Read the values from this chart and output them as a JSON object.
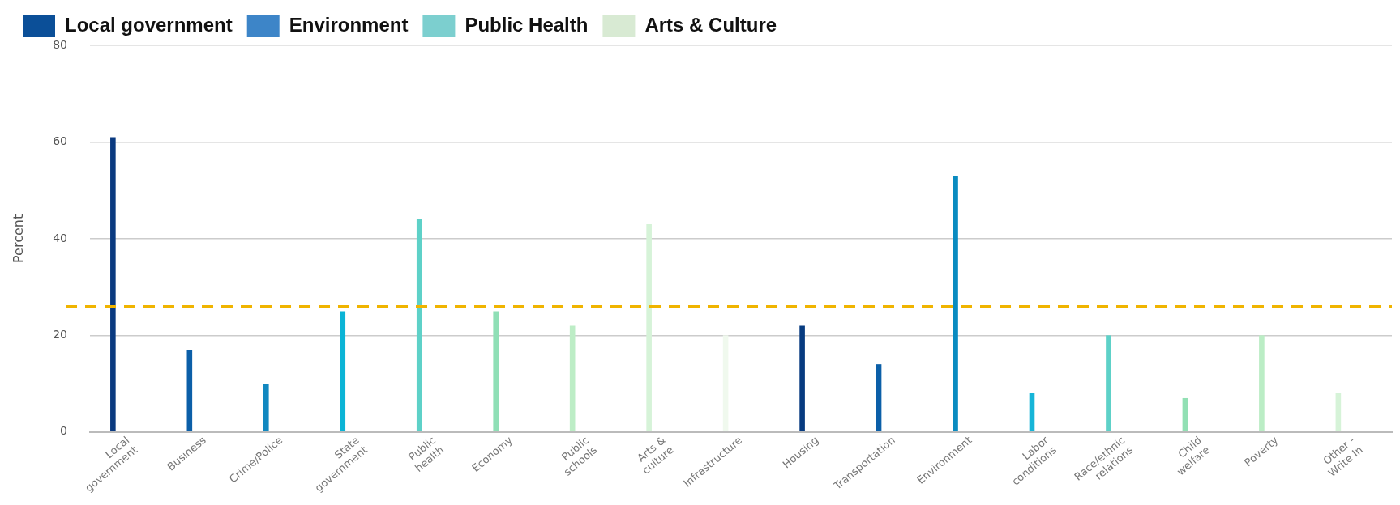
{
  "chart_data": {
    "type": "bar",
    "ylabel": "Percent",
    "categories": [
      "Local government",
      "Business",
      "Crime/Police",
      "State government",
      "Public health",
      "Economy",
      "Public schools",
      "Arts & culture",
      "Infrastructure",
      "Housing",
      "Transportation",
      "Environment",
      "Labor conditions",
      "Race/ethnic relations",
      "Child welfare",
      "Poverty",
      "Other - Write In"
    ],
    "series": [
      {
        "values": [
          61,
          17,
          10,
          25,
          44,
          25,
          22,
          43,
          20,
          22,
          14,
          53,
          8,
          20,
          7,
          20,
          8
        ],
        "colors": [
          "#0a3a80",
          "#0b5fa8",
          "#1188c0",
          "#0bb4d6",
          "#5ed1c8",
          "#8fdfb6",
          "#bdedc6",
          "#d6f3d8",
          "#f0f9ee",
          "#073b80",
          "#0b5fa8",
          "#0a8bc0",
          "#16b5d8",
          "#5ed1c8",
          "#92e0b4",
          "#bbedc5",
          "#d6f3d8"
        ]
      },
      {
        "name": "Local government",
        "color": "#0b4f98",
        "values": [
          null,
          null,
          null,
          null,
          null,
          null,
          null,
          null,
          null,
          null,
          null,
          null,
          null,
          null,
          null,
          null,
          null
        ]
      },
      {
        "name": "Environment",
        "color": "#3d85c8",
        "values": [
          null,
          null,
          null,
          null,
          null,
          null,
          null,
          null,
          null,
          null,
          null,
          null,
          null,
          null,
          null,
          null,
          null
        ]
      },
      {
        "name": "Public Health",
        "color": "#7ccfcf",
        "values": [
          null,
          null,
          null,
          null,
          null,
          null,
          null,
          null,
          null,
          null,
          null,
          null,
          null,
          null,
          null,
          null,
          null
        ]
      },
      {
        "name": "Arts & Culture",
        "color": "#d8ead3",
        "values": [
          null,
          null,
          null,
          null,
          null,
          null,
          null,
          null,
          null,
          null,
          null,
          null,
          null,
          null,
          null,
          null,
          null
        ]
      }
    ],
    "ylim": [
      0,
      80
    ],
    "yticks": [
      0,
      20,
      40,
      60,
      80
    ],
    "grid": "y",
    "legend": "top",
    "ref_lines": [
      {
        "axis": "y",
        "value": 26,
        "color": "#f0b400",
        "line_style": "dashed"
      }
    ]
  }
}
